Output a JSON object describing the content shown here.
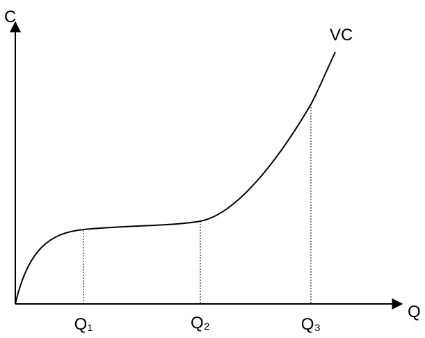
{
  "axes": {
    "y_label": "C",
    "x_label": "Q"
  },
  "curve": {
    "label": "VC"
  },
  "quantity_marks": [
    "Q₁",
    "Q₂",
    "Q₃"
  ]
}
